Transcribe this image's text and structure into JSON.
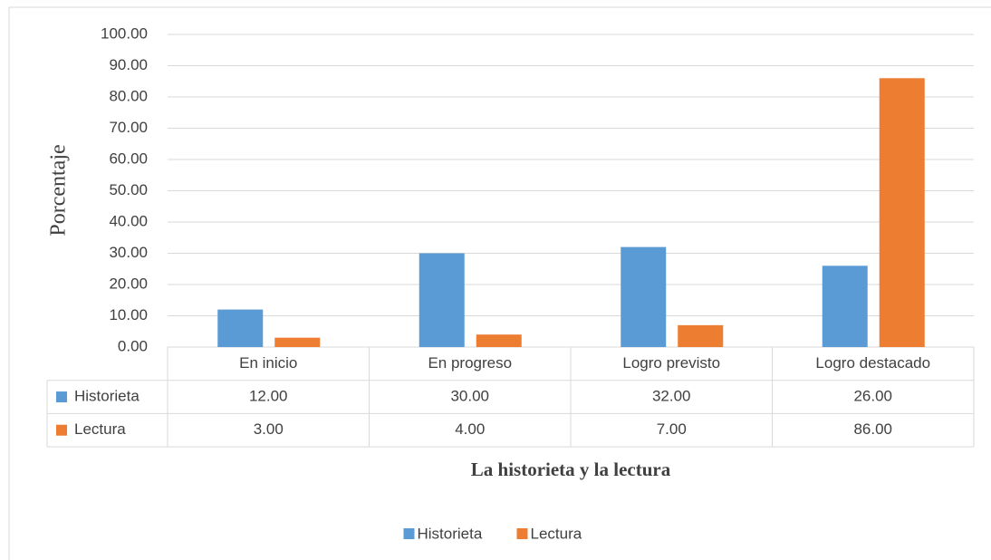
{
  "chart_data": {
    "type": "bar",
    "ylabel": "Porcentaje",
    "xlabel": "La historieta y la lectura",
    "categories": [
      "En inicio",
      "En progreso",
      "Logro previsto",
      "Logro destacado"
    ],
    "series": [
      {
        "name": "Historieta",
        "color": "#5b9bd5",
        "values": [
          12,
          30,
          32,
          26
        ],
        "value_labels": [
          "12.00",
          "30.00",
          "32.00",
          "26.00"
        ]
      },
      {
        "name": "Lectura",
        "color": "#ed7d31",
        "values": [
          3,
          4,
          7,
          86
        ],
        "value_labels": [
          "3.00",
          "4.00",
          "7.00",
          "86.00"
        ]
      }
    ],
    "ylim": [
      0,
      100
    ],
    "yticks": [
      {
        "value": 0,
        "label": "0.00"
      },
      {
        "value": 10,
        "label": "10.00"
      },
      {
        "value": 20,
        "label": "20.00"
      },
      {
        "value": 30,
        "label": "30.00"
      },
      {
        "value": 40,
        "label": "40.00"
      },
      {
        "value": 50,
        "label": "50.00"
      },
      {
        "value": 60,
        "label": "60.00"
      },
      {
        "value": 70,
        "label": "70.00"
      },
      {
        "value": 80,
        "label": "80.00"
      },
      {
        "value": 90,
        "label": "90.00"
      },
      {
        "value": 100,
        "label": "100.00"
      }
    ],
    "grid": true,
    "legend": "bottom"
  }
}
